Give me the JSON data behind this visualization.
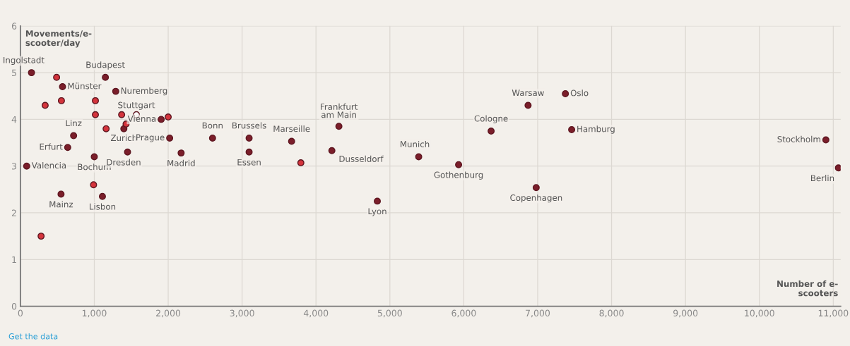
{
  "chart_data": {
    "type": "scatter",
    "xlabel": "Number of e-scooters",
    "ylabel": "Movements/e-scooter/day",
    "x": [
      150,
      1150,
      570,
      1290,
      1570,
      1905,
      720,
      640,
      85,
      1000,
      1400,
      2020,
      1450,
      2175,
      550,
      1110,
      2600,
      3095,
      3095,
      3670,
      4310,
      4215,
      4830,
      5390,
      5930,
      6370,
      6870,
      7375,
      7460,
      6980,
      10900,
      11070,
      490,
      335,
      555,
      1015,
      1015,
      1160,
      1370,
      1430,
      2000,
      990,
      280,
      3795
    ],
    "values": [
      5.0,
      4.9,
      4.7,
      4.6,
      4.1,
      4.0,
      3.65,
      3.4,
      3.0,
      3.2,
      3.8,
      3.6,
      3.3,
      3.28,
      2.4,
      2.35,
      3.6,
      3.6,
      3.3,
      3.53,
      3.85,
      3.33,
      2.25,
      3.2,
      3.03,
      3.75,
      4.3,
      4.55,
      3.78,
      2.54,
      3.56,
      2.96,
      4.9,
      4.3,
      4.4,
      4.4,
      4.1,
      3.8,
      4.1,
      3.9,
      4.05,
      2.6,
      1.5,
      3.07
    ],
    "colors": [
      "#7b1e2a",
      "#7b1e2a",
      "#7b1e2a",
      "#7b1e2a",
      "#ffffff",
      "#7b1e2a",
      "#7b1e2a",
      "#7b1e2a",
      "#7b1e2a",
      "#7b1e2a",
      "#7b1e2a",
      "#7b1e2a",
      "#7b1e2a",
      "#7b1e2a",
      "#7b1e2a",
      "#7b1e2a",
      "#7b1e2a",
      "#7b1e2a",
      "#7b1e2a",
      "#7b1e2a",
      "#7b1e2a",
      "#7b1e2a",
      "#7b1e2a",
      "#7b1e2a",
      "#7b1e2a",
      "#7b1e2a",
      "#7b1e2a",
      "#7b1e2a",
      "#7b1e2a",
      "#7b1e2a",
      "#7b1e2a",
      "#7b1e2a",
      "#d4343c",
      "#d4343c",
      "#d4343c",
      "#d4343c",
      "#d4343c",
      "#d4343c",
      "#d4343c",
      "#d4343c",
      "#d4343c",
      "#d4343c",
      "#d4343c",
      "#d4343c"
    ],
    "marker": "circle",
    "grid": true,
    "xlim": [
      0,
      11100
    ],
    "ylim": [
      0,
      6
    ],
    "xticks": [
      0,
      {
        "value": 1000,
        "label": "1,000"
      },
      {
        "value": 2000,
        "label": "2,000"
      },
      {
        "value": 3000,
        "label": "3,000"
      },
      {
        "value": 4000,
        "label": "4,000"
      },
      {
        "value": 5000,
        "label": "5,000"
      },
      {
        "value": 6000,
        "label": "6,000"
      },
      {
        "value": 7000,
        "label": "7,000"
      },
      {
        "value": 8000,
        "label": "8,000"
      },
      {
        "value": 9000,
        "label": "9,000"
      },
      {
        "value": 10000,
        "label": "10,000"
      },
      {
        "value": 11000,
        "label": "11,000"
      }
    ],
    "yticks": [
      0,
      1,
      2,
      3,
      4,
      5,
      6
    ],
    "annotations": [
      {
        "text": "Ingolstadt",
        "x": 150,
        "y": 5.0
      },
      {
        "text": "Budapest",
        "x": 1150,
        "y": 4.9
      },
      {
        "text": "Münster",
        "x": 570,
        "y": 4.7
      },
      {
        "text": "Nuremberg",
        "x": 1290,
        "y": 4.6
      },
      {
        "text": "Stuttgart",
        "x": 1570,
        "y": 4.1
      },
      {
        "text": "Vienna",
        "x": 1905,
        "y": 4.0
      },
      {
        "text": "Linz",
        "x": 720,
        "y": 3.65
      },
      {
        "text": "Erfurt",
        "x": 640,
        "y": 3.4
      },
      {
        "text": "Valencia",
        "x": 85,
        "y": 3.0
      },
      {
        "text": "Bochum",
        "x": 1000,
        "y": 3.2
      },
      {
        "text": "Zurich",
        "x": 1400,
        "y": 3.8
      },
      {
        "text": "Prague",
        "x": 2020,
        "y": 3.6
      },
      {
        "text": "Dresden",
        "x": 1450,
        "y": 3.3
      },
      {
        "text": "Madrid",
        "x": 2175,
        "y": 3.28
      },
      {
        "text": "Mainz",
        "x": 550,
        "y": 2.4
      },
      {
        "text": "Lisbon",
        "x": 1110,
        "y": 2.35
      },
      {
        "text": "Bonn",
        "x": 2600,
        "y": 3.6
      },
      {
        "text": "Brussels",
        "x": 3095,
        "y": 3.6
      },
      {
        "text": "Essen",
        "x": 3095,
        "y": 3.3
      },
      {
        "text": "Marseille",
        "x": 3670,
        "y": 3.53
      },
      {
        "text": "Frankfurt\nam Main",
        "x": 4310,
        "y": 3.85
      },
      {
        "text": "Dusseldorf",
        "x": 4215,
        "y": 3.33
      },
      {
        "text": "Lyon",
        "x": 4830,
        "y": 2.25
      },
      {
        "text": "Munich",
        "x": 5390,
        "y": 3.2
      },
      {
        "text": "Gothenburg",
        "x": 5930,
        "y": 3.03
      },
      {
        "text": "Cologne",
        "x": 6370,
        "y": 3.75
      },
      {
        "text": "Warsaw",
        "x": 6870,
        "y": 4.3
      },
      {
        "text": "Oslo",
        "x": 7375,
        "y": 4.55
      },
      {
        "text": "Hamburg",
        "x": 7460,
        "y": 3.78
      },
      {
        "text": "Copenhagen",
        "x": 6980,
        "y": 2.54
      },
      {
        "text": "Stockholm",
        "x": 10900,
        "y": 3.56
      },
      {
        "text": "Berlin",
        "x": 11070,
        "y": 2.96
      },
      "Get the data"
    ]
  }
}
